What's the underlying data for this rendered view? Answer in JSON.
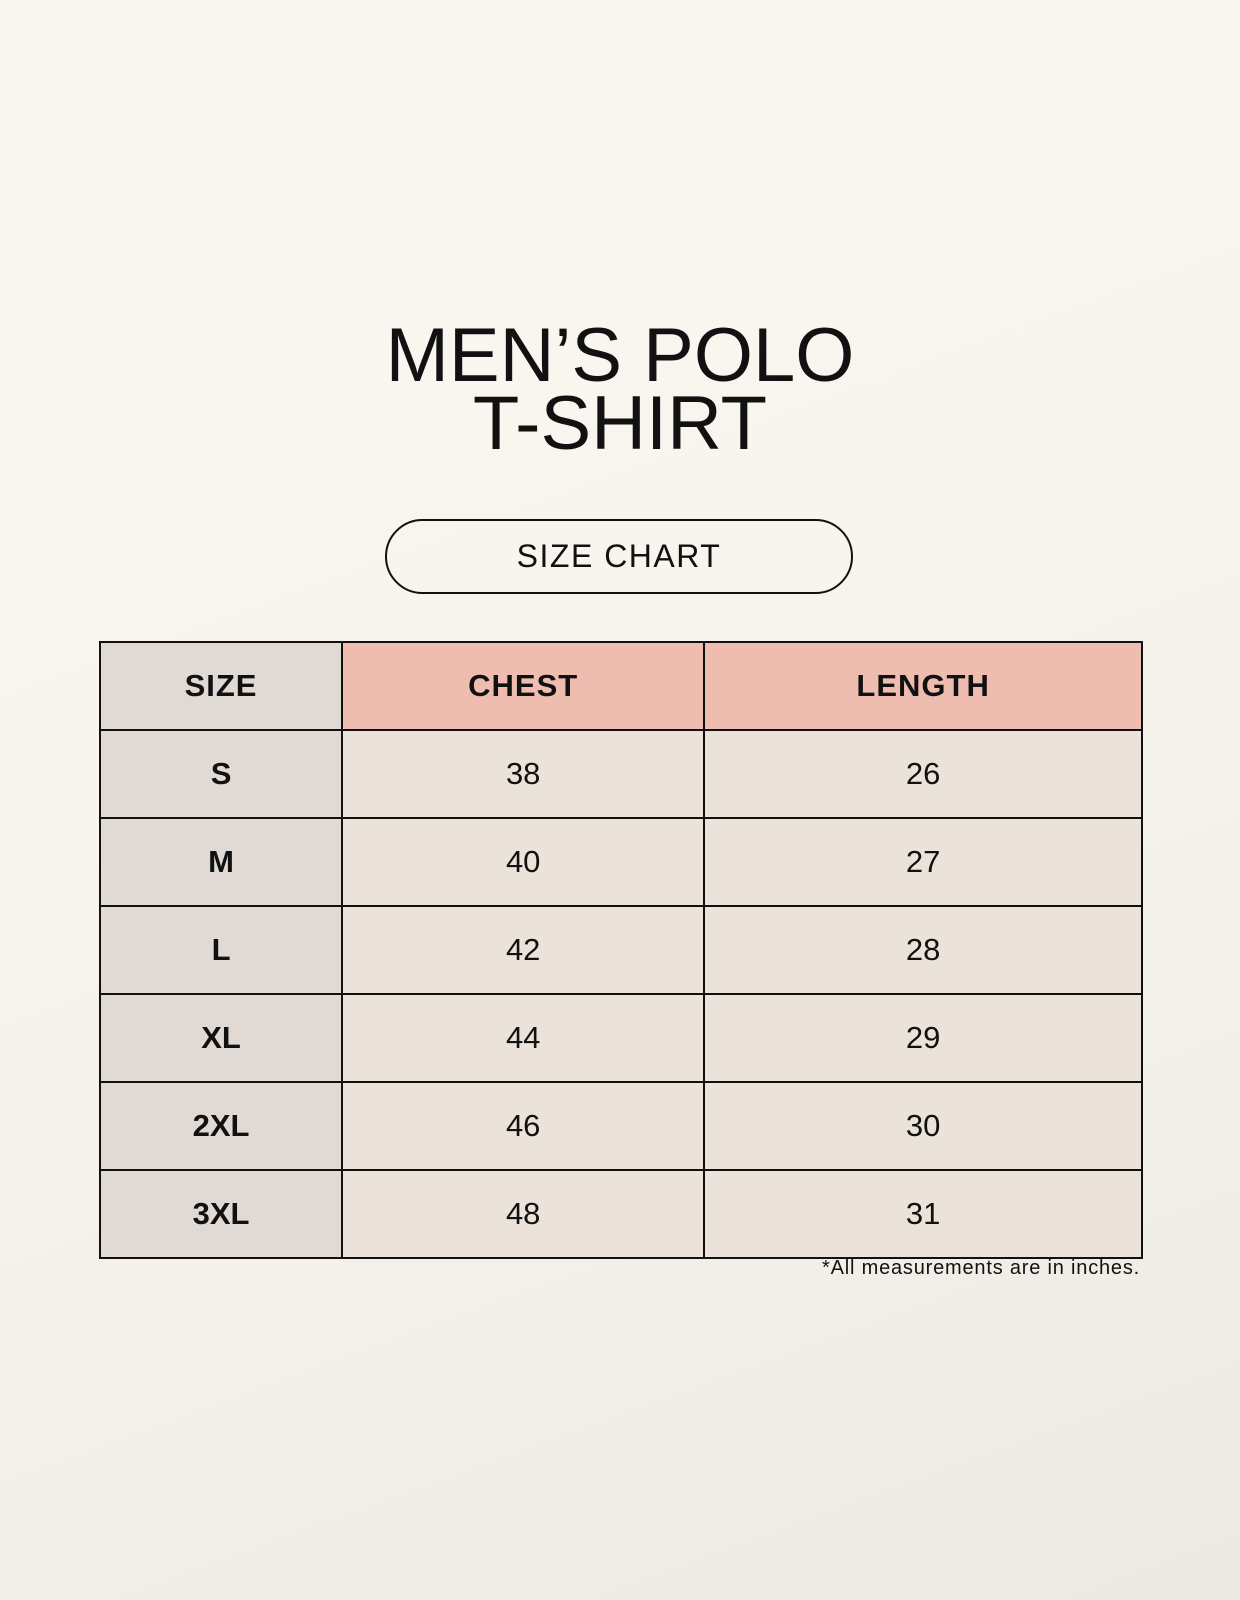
{
  "title": {
    "line1": "MEN’S POLO",
    "line2": "T-SHIRT"
  },
  "badge": "SIZE CHART",
  "colors": {
    "size_column": "#e0d9d4",
    "header_accent": "#eebdb0",
    "cell": "#ebe3d9"
  },
  "table": {
    "headers": [
      "SIZE",
      "CHEST",
      "LENGTH"
    ],
    "rows": [
      [
        "S",
        "38",
        "26"
      ],
      [
        "M",
        "40",
        "27"
      ],
      [
        "L",
        "42",
        "28"
      ],
      [
        "XL",
        "44",
        "29"
      ],
      [
        "2XL",
        "46",
        "30"
      ],
      [
        "3XL",
        "48",
        "31"
      ]
    ]
  },
  "footnote": "*All measurements are in inches."
}
